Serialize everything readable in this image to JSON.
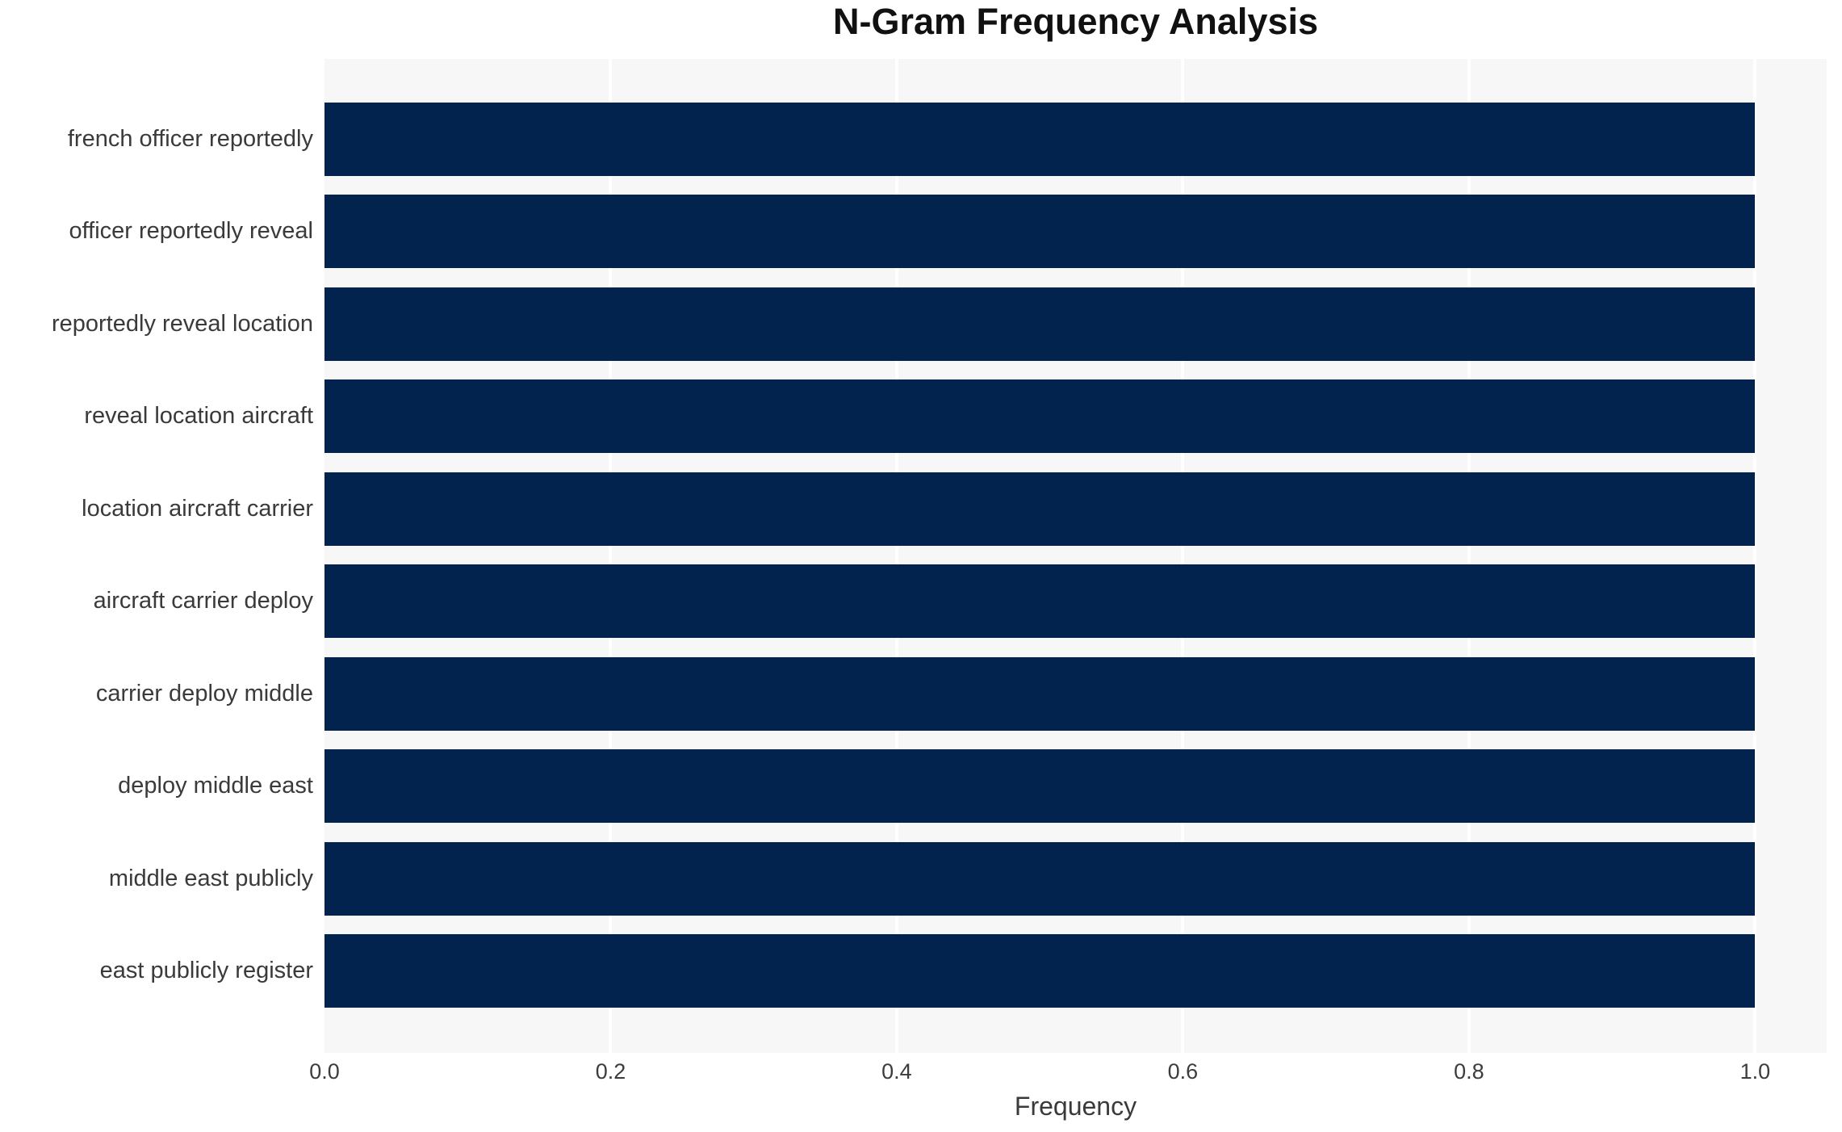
{
  "chart": {
    "colors": {
      "bar": "#02234d",
      "plot_bg": "#f7f7f7",
      "grid": "#ffffff",
      "title_text": "#111111",
      "label_text": "#3a3a3a",
      "tick_text": "#3c3c3c",
      "figure_bg": "#ffffff"
    }
  },
  "chart_data": {
    "type": "bar",
    "orientation": "horizontal",
    "title": "N-Gram Frequency Analysis",
    "xlabel": "Frequency",
    "ylabel": "",
    "categories": [
      "french officer reportedly",
      "officer reportedly reveal",
      "reportedly reveal location",
      "reveal location aircraft",
      "location aircraft carrier",
      "aircraft carrier deploy",
      "carrier deploy middle",
      "deploy middle east",
      "middle east publicly",
      "east publicly register"
    ],
    "values": [
      1.0,
      1.0,
      1.0,
      1.0,
      1.0,
      1.0,
      1.0,
      1.0,
      1.0,
      1.0
    ],
    "x_ticks": [
      0.0,
      0.2,
      0.4,
      0.6,
      0.8,
      1.0
    ],
    "x_tick_labels": [
      "0.0",
      "0.2",
      "0.4",
      "0.6",
      "0.8",
      "1.0"
    ],
    "xlim": [
      0,
      1.05
    ],
    "grid": "vertical-white-gridlines-on-gray-plot",
    "legend": "none"
  }
}
